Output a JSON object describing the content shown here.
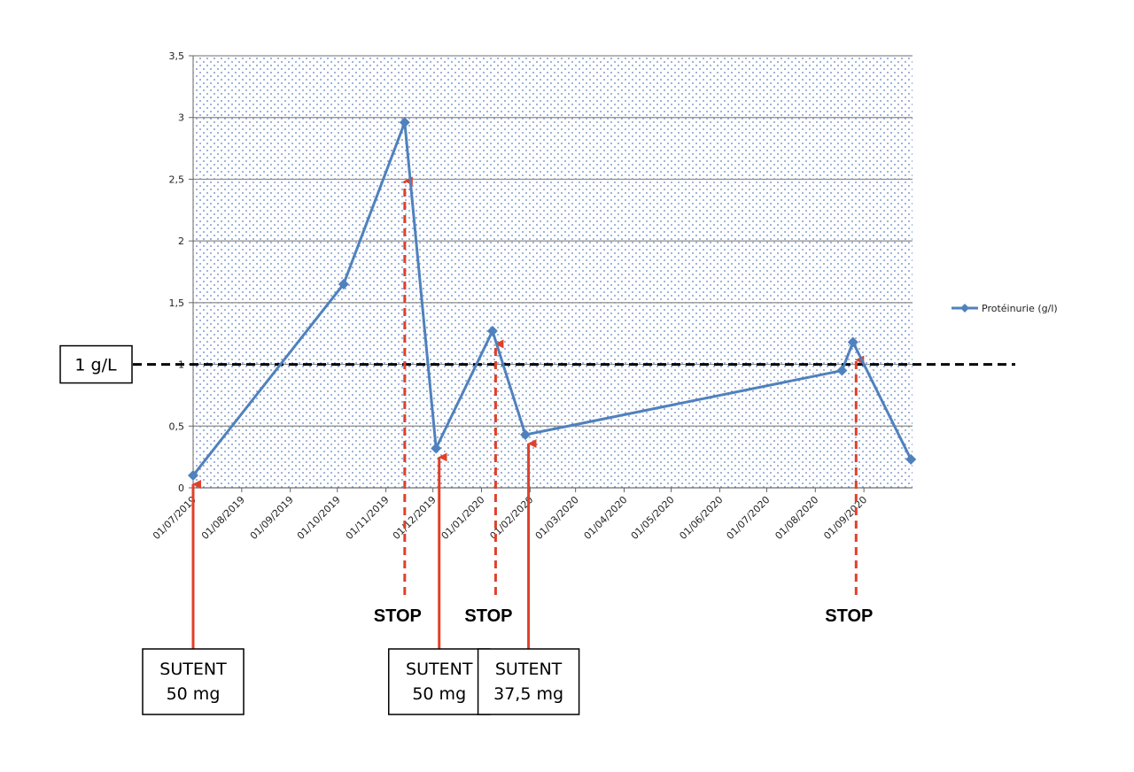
{
  "chart_data": {
    "type": "line",
    "x_type": "date",
    "x_ticks": [
      "01/07/2019",
      "01/08/2019",
      "01/09/2019",
      "01/10/2019",
      "01/11/2019",
      "01/12/2019",
      "01/01/2020",
      "01/02/2020",
      "01/03/2020",
      "01/04/2020",
      "01/05/2020",
      "01/06/2020",
      "01/07/2020",
      "01/08/2020",
      "01/09/2020"
    ],
    "y_ticks": [
      "0",
      "0,5",
      "1",
      "1,5",
      "2",
      "2,5",
      "3",
      "3,5"
    ],
    "ylim": [
      0,
      3.5
    ],
    "grid": true,
    "legend_position": "right",
    "series": [
      {
        "name": "Protéinurie (g/l)",
        "color": "#4F81BD",
        "marker": "diamond",
        "points": [
          {
            "x": "2019-07-01",
            "y": 0.1
          },
          {
            "x": "2019-10-05",
            "y": 1.65
          },
          {
            "x": "2019-11-13",
            "y": 2.96
          },
          {
            "x": "2019-12-03",
            "y": 0.32
          },
          {
            "x": "2020-01-08",
            "y": 1.27
          },
          {
            "x": "2020-01-29",
            "y": 0.43
          },
          {
            "x": "2020-08-18",
            "y": 0.95
          },
          {
            "x": "2020-08-25",
            "y": 1.18
          },
          {
            "x": "2020-10-01",
            "y": 0.23
          }
        ]
      }
    ],
    "reference_line": {
      "y": 1.0,
      "label": "1 g/L"
    },
    "annotations": [
      {
        "kind": "start",
        "date": "2019-07-01",
        "lines": [
          "SUTENT",
          "50 mg"
        ]
      },
      {
        "kind": "stop",
        "date": "2019-11-13",
        "label": "STOP",
        "arrow_to_y": 2.5
      },
      {
        "kind": "start",
        "date": "2019-12-05",
        "lines": [
          "SUTENT",
          "50 mg"
        ]
      },
      {
        "kind": "stop",
        "date": "2020-01-10",
        "label": "STOP",
        "arrow_to_y": 1.18
      },
      {
        "kind": "start",
        "date": "2020-01-31",
        "lines": [
          "SUTENT",
          "37,5 mg"
        ]
      },
      {
        "kind": "stop",
        "date": "2020-08-27",
        "label": "STOP",
        "arrow_to_y": 1.05
      }
    ]
  }
}
